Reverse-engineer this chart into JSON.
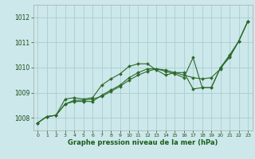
{
  "bg_color": "#cce8ea",
  "grid_color": "#aacdd0",
  "line_color": "#2d6a2d",
  "marker_color": "#2d6a2d",
  "xlabel": "Graphe pression niveau de la mer (hPa)",
  "xlabel_color": "#1a5c1a",
  "ylim": [
    1007.5,
    1012.5
  ],
  "xlim": [
    -0.5,
    23.5
  ],
  "yticks": [
    1008,
    1009,
    1010,
    1011,
    1012
  ],
  "xticks": [
    0,
    1,
    2,
    3,
    4,
    5,
    6,
    7,
    8,
    9,
    10,
    11,
    12,
    13,
    14,
    15,
    16,
    17,
    18,
    19,
    20,
    21,
    22,
    23
  ],
  "series": [
    [
      1007.8,
      1008.05,
      1008.1,
      1008.55,
      1008.7,
      1008.7,
      1008.75,
      1008.85,
      1009.05,
      1009.25,
      1009.5,
      1009.7,
      1009.85,
      1009.95,
      1009.9,
      1009.8,
      1009.7,
      1009.6,
      1009.55,
      1009.6,
      1009.95,
      1010.45,
      1011.05,
      1011.85
    ],
    [
      1007.8,
      1008.05,
      1008.1,
      1008.75,
      1008.8,
      1008.75,
      1008.8,
      1009.3,
      1009.55,
      1009.75,
      1010.05,
      1010.15,
      1010.15,
      1009.9,
      1009.7,
      1009.8,
      1009.8,
      1009.15,
      1009.2,
      1009.2,
      1010.0,
      1010.4,
      1011.05,
      1011.85
    ],
    [
      1007.8,
      1008.05,
      1008.1,
      1008.55,
      1008.65,
      1008.65,
      1008.65,
      1008.9,
      1009.1,
      1009.3,
      1009.6,
      1009.8,
      1009.95,
      1009.95,
      1009.85,
      1009.75,
      1009.6,
      1010.4,
      1009.2,
      1009.2,
      1010.0,
      1010.5,
      1011.05,
      1011.85
    ]
  ]
}
